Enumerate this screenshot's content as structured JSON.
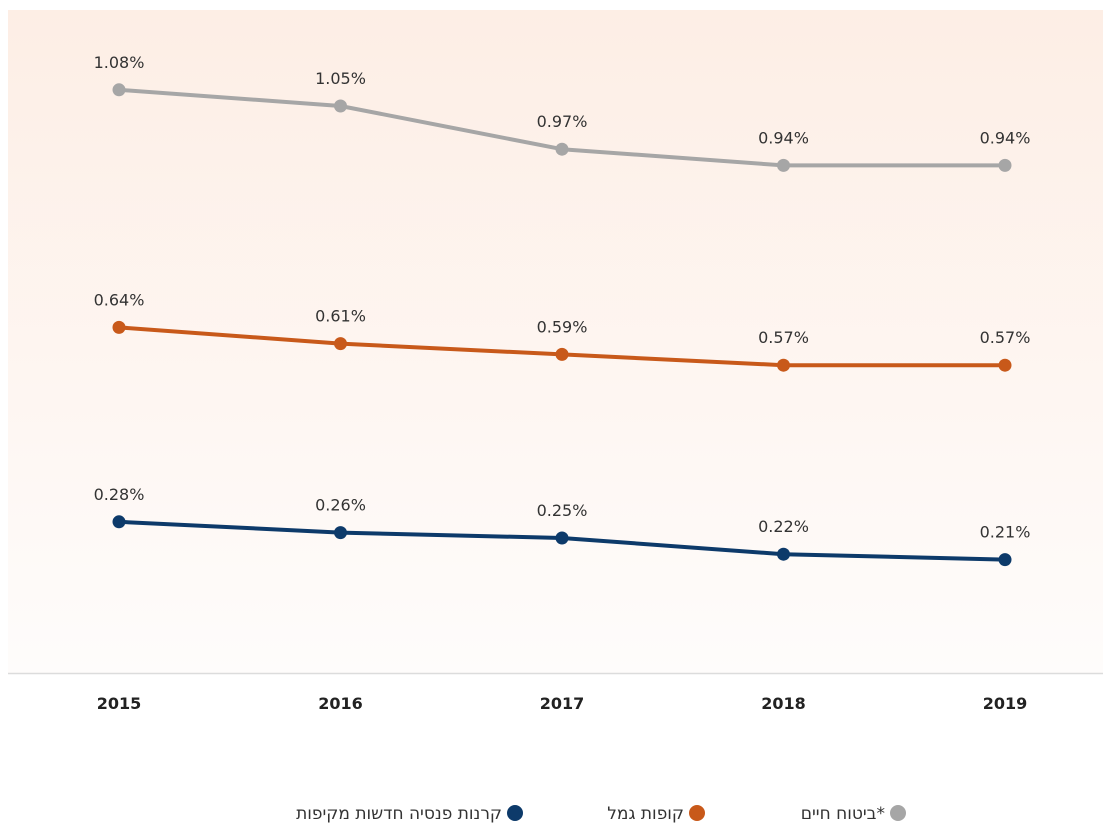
{
  "chart_data": {
    "type": "line",
    "categories": [
      "2015",
      "2016",
      "2017",
      "2018",
      "2019"
    ],
    "series": [
      {
        "name": "ביטוח חיים*",
        "color": "#a6a6a6",
        "values": [
          1.08,
          1.05,
          0.97,
          0.94,
          0.94
        ],
        "value_labels": [
          "1.08%",
          "1.05%",
          "0.97%",
          "0.94%",
          "0.94%"
        ]
      },
      {
        "name": "קופות גמל",
        "color": "#c8591a",
        "values": [
          0.64,
          0.61,
          0.59,
          0.57,
          0.57
        ],
        "value_labels": [
          "0.64%",
          "0.61%",
          "0.59%",
          "0.57%",
          "0.57%"
        ]
      },
      {
        "name": "קרנות פנסיה חדשות מקיפות",
        "color": "#0d3a6a",
        "values": [
          0.28,
          0.26,
          0.25,
          0.22,
          0.21
        ],
        "value_labels": [
          "0.28%",
          "0.26%",
          "0.25%",
          "0.22%",
          "0.21%"
        ]
      }
    ],
    "ylim": [
      0,
      1.2
    ]
  }
}
